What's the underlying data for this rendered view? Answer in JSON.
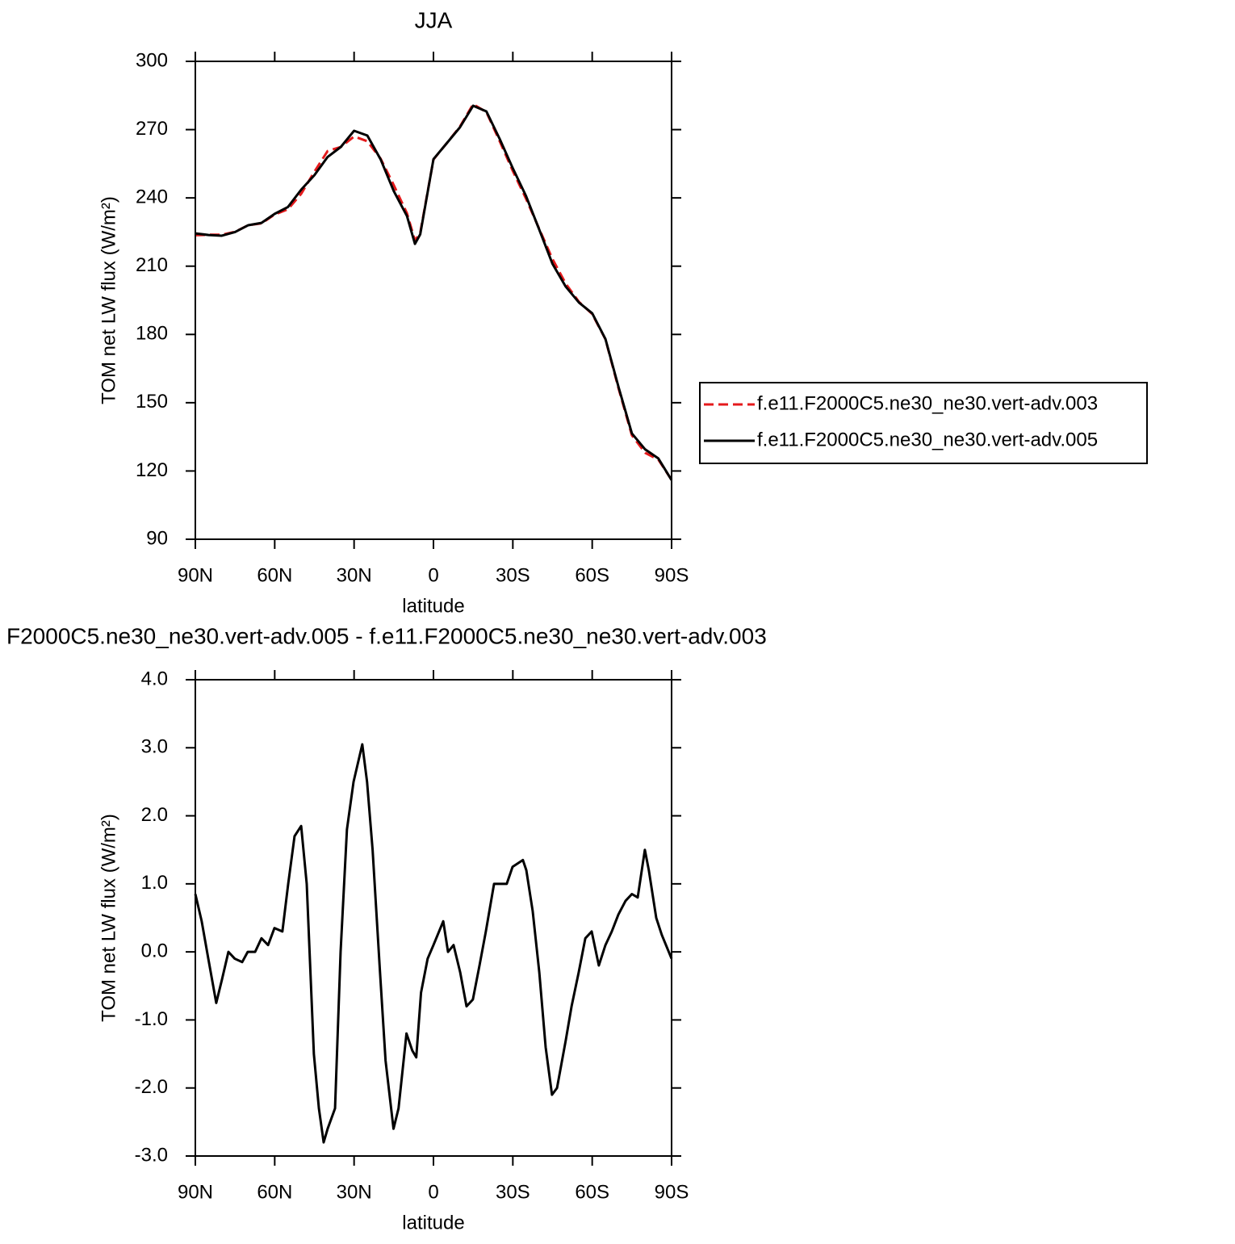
{
  "chart_data": [
    {
      "type": "line",
      "title": "JJA",
      "xlabel": "latitude",
      "ylabel": "TOM net LW flux (W/m²)",
      "x": [
        90,
        85,
        80,
        75,
        70,
        65,
        60,
        55,
        50,
        45,
        40,
        35,
        30,
        25,
        20,
        15,
        10,
        7,
        5,
        0,
        -5,
        -10,
        -15,
        -20,
        -25,
        -30,
        -35,
        -40,
        -45,
        -50,
        -55,
        -60,
        -65,
        -70,
        -75,
        -80,
        -85,
        -90
      ],
      "series": [
        {
          "name": "f.e11.F2000C5.ne30_ne30.vert-adv.003",
          "color": "#e41a1c",
          "dash": true,
          "values": [
            223.6,
            223.8,
            223.8,
            225.1,
            228,
            228.8,
            232.7,
            235,
            241.8,
            251.5,
            260.6,
            262.4,
            267,
            264.9,
            257.3,
            245.6,
            233.2,
            221.3,
            224.6,
            256.9,
            264,
            271.3,
            281.2,
            277.7,
            265,
            251.8,
            239.6,
            226.3,
            213.1,
            202.3,
            194.3,
            189,
            177.9,
            156.1,
            135.7,
            128,
            125,
            116.1
          ]
        },
        {
          "name": "f.e11.F2000C5.ne30_ne30.vert-adv.005",
          "color": "#000000",
          "dash": false,
          "values": [
            224.4,
            223.7,
            223.4,
            225,
            228,
            229,
            233,
            236,
            243.6,
            250,
            258,
            262.4,
            269.5,
            267.4,
            257,
            243,
            232,
            219.8,
            224,
            257,
            264,
            271,
            280.5,
            278,
            266,
            253,
            240.8,
            226,
            211,
            201,
            194,
            189.3,
            178,
            156.7,
            136.5,
            129.5,
            125.5,
            116
          ]
        }
      ],
      "xlim": [
        90,
        -90
      ],
      "xticks": [
        {
          "value": 90,
          "label": "90N"
        },
        {
          "value": 60,
          "label": "60N"
        },
        {
          "value": 30,
          "label": "30N"
        },
        0,
        {
          "value": -30,
          "label": "30S"
        },
        {
          "value": -60,
          "label": "60S"
        },
        {
          "value": -90,
          "label": "90S"
        }
      ],
      "ylim": [
        90,
        300
      ],
      "yticks": [
        90,
        120,
        150,
        180,
        210,
        240,
        270,
        300
      ],
      "legend": "right"
    },
    {
      "type": "line",
      "title": "F2000C5.ne30_ne30.vert-adv.005 - f.e11.F2000C5.ne30_ne30.vert-adv.003",
      "xlabel": "latitude",
      "ylabel": "TOM net LW flux (W/m²)",
      "x": [
        90,
        87.6,
        85.1,
        82.1,
        79.9,
        77.5,
        75.1,
        72.3,
        70.2,
        67.4,
        65,
        62.5,
        60.1,
        57.1,
        54.9,
        52.5,
        50,
        47.9,
        45.2,
        43.3,
        41.5,
        40,
        37.2,
        35.1,
        32.7,
        30.2,
        26.9,
        25.1,
        23,
        20.2,
        18.1,
        15.1,
        13.2,
        10.2,
        8,
        6.5,
        4.7,
        2.2,
        0,
        -3.7,
        -5.5,
        -7.6,
        -10.1,
        -12.5,
        -14.9,
        -17.4,
        -19.8,
        -22.9,
        -25,
        -27.7,
        -29.9,
        -33.8,
        -35.1,
        -37.5,
        -40,
        -42.4,
        -44.8,
        -46.7,
        -50,
        -52.2,
        -54.9,
        -57.4,
        -59.8,
        -62.5,
        -65,
        -67.4,
        -69.9,
        -72.6,
        -75,
        -77.2,
        -79.9,
        -81.4,
        -84.2,
        -86.3,
        -90
      ],
      "values": [
        0.85,
        0.45,
        -0.1,
        -0.75,
        -0.4,
        0,
        -0.1,
        -0.15,
        0,
        0,
        0.2,
        0.1,
        0.35,
        0.3,
        1,
        1.7,
        1.85,
        1,
        -1.5,
        -2.3,
        -2.8,
        -2.6,
        -2.3,
        0,
        1.8,
        2.5,
        3.05,
        2.5,
        1.5,
        -0.3,
        -1.6,
        -2.6,
        -2.3,
        -1.2,
        -1.45,
        -1.55,
        -0.6,
        -0.1,
        0.1,
        0.45,
        0,
        0.1,
        -0.3,
        -0.8,
        -0.7,
        -0.2,
        0.3,
        1,
        1,
        1,
        1.25,
        1.35,
        1.2,
        0.6,
        -0.3,
        -1.4,
        -2.1,
        -2,
        -1.3,
        -0.8,
        -0.3,
        0.2,
        0.3,
        -0.2,
        0.1,
        0.3,
        0.55,
        0.75,
        0.85,
        0.8,
        1.5,
        1.2,
        0.5,
        0.25,
        -0.1
      ],
      "color": "#000000",
      "xlim": [
        90,
        -90
      ],
      "xticks": [
        {
          "value": 90,
          "label": "90N"
        },
        {
          "value": 60,
          "label": "60N"
        },
        {
          "value": 30,
          "label": "30N"
        },
        0,
        {
          "value": -30,
          "label": "30S"
        },
        {
          "value": -60,
          "label": "60S"
        },
        {
          "value": -90,
          "label": "90S"
        }
      ],
      "ylim": [
        -3,
        4
      ],
      "yticks": [
        {
          "value": -3,
          "label": "-3.0"
        },
        {
          "value": -2,
          "label": "-2.0"
        },
        {
          "value": -1,
          "label": "-1.0"
        },
        {
          "value": 0,
          "label": "0.0"
        },
        {
          "value": 1,
          "label": "1.0"
        },
        {
          "value": 2,
          "label": "2.0"
        },
        {
          "value": 3,
          "label": "3.0"
        },
        {
          "value": 4,
          "label": "4.0"
        }
      ]
    }
  ]
}
